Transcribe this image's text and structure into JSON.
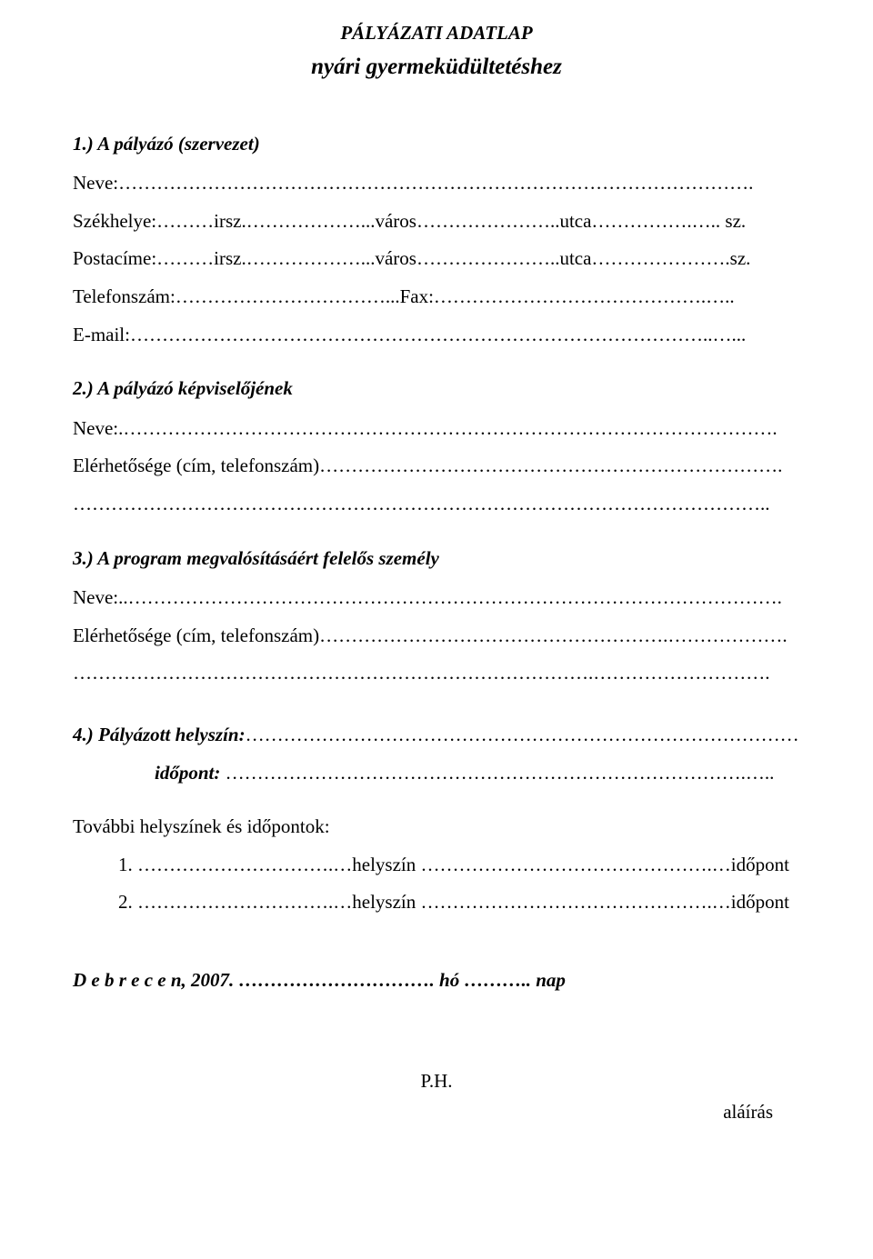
{
  "header": {
    "line1": "PÁLYÁZATI ADATLAP",
    "line2": "nyári gyermeküdültetéshez"
  },
  "section1": {
    "heading": "1.) A pályázó (szervezet)",
    "name_label": "Neve:……………………………………………………………………………………….",
    "seat_label": "Székhelye:………irsz.………………...város…………………..utca…………….….. sz.",
    "post_label": "Postacíme:………irsz.………………...város…………………..utca………………….sz.",
    "phone_label": "Telefonszám:……………………………...Fax:…………………………………….…..",
    "email_label": "E-mail:………………………………………………………………………………..…..."
  },
  "section2": {
    "heading": "2.) A pályázó képviselőjének",
    "name_label": "Neve:.………………………………………………………………………………………….",
    "contact_label": "Elérhetősége (cím, telefonszám)……………………………………………………………….",
    "contact_cont": "……………………………………………………………………………………………….."
  },
  "section3": {
    "heading": "3.) A program megvalósításáért felelős személy",
    "name_label": "Neve:..………………………………………………………………………………………….",
    "contact_label": "Elérhetősége (cím, telefonszám)……………………………………………….……………….",
    "contact_cont": "……………………………………………………………………….………………………."
  },
  "section4": {
    "heading_prefix": "4.) Pályázott helyszín:",
    "heading_suffix": "……………………………………………………………………………",
    "time_label": "időpont:",
    "time_suffix": "……………………………………………………………………….….."
  },
  "more_locations": {
    "label": "További helyszínek és időpontok:",
    "item1": "1.   ………………………….…helyszín ……………………………………….…időpont",
    "item2": "2.   ………………………….…helyszín ……………………………………….…időpont"
  },
  "date": {
    "label": "D e b r e c e n, 2007. …………………………. hó ……….. nap"
  },
  "footer": {
    "ph": "P.H.",
    "signature": "aláírás"
  }
}
